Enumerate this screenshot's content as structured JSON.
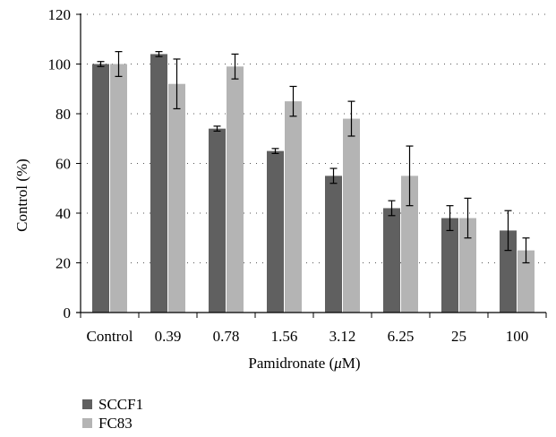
{
  "chart_data": {
    "type": "bar",
    "xlabel": {
      "prefix": "Pamidronate (",
      "unit_symbol": "μ",
      "unit_suffix": "M)"
    },
    "ylabel": "Control (%)",
    "ylim": [
      0,
      120
    ],
    "yticks": [
      0,
      20,
      40,
      60,
      80,
      100,
      120
    ],
    "grid": "horizontal dotted",
    "legend_position": "bottom-left",
    "categories": [
      "Control",
      "0.39",
      "0.78",
      "1.56",
      "3.12",
      "6.25",
      "25",
      "100"
    ],
    "series": [
      {
        "name": "SCCF1",
        "color": "#606060",
        "values": [
          100,
          104,
          74,
          65,
          55,
          42,
          38,
          33
        ],
        "error": [
          1,
          1,
          1,
          1,
          3,
          3,
          5,
          8
        ]
      },
      {
        "name": "FC83",
        "color": "#b4b4b4",
        "values": [
          100,
          92,
          99,
          85,
          78,
          55,
          38,
          25
        ],
        "error": [
          5,
          10,
          5,
          6,
          7,
          12,
          8,
          5
        ]
      }
    ]
  }
}
